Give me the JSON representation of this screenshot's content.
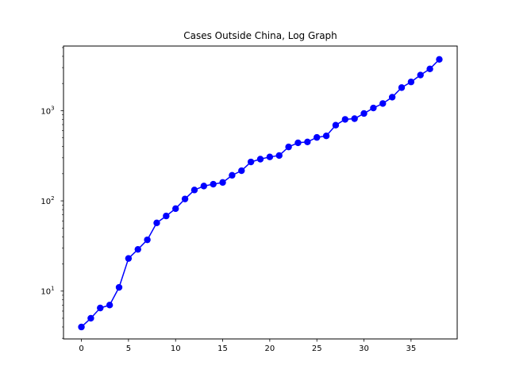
{
  "chart_data": {
    "type": "line",
    "title": "Cases Outside China, Log Graph",
    "xlabel": "",
    "ylabel": "",
    "xscale": "linear",
    "yscale": "log",
    "xlim": [
      -1.9,
      39.9
    ],
    "ylim": [
      2.95,
      5200
    ],
    "grid": false,
    "legend": "none",
    "x_ticks": [
      0,
      5,
      10,
      15,
      20,
      25,
      30,
      35
    ],
    "x_tick_labels": [
      "0",
      "5",
      "10",
      "15",
      "20",
      "25",
      "30",
      "35"
    ],
    "y_major_ticks": [
      10,
      100,
      1000
    ],
    "y_tick_label_base": "10",
    "y_tick_label_exponents": [
      "1",
      "2",
      "3"
    ],
    "y_minor_ticks": [
      3,
      4,
      5,
      6,
      7,
      8,
      9,
      20,
      30,
      40,
      50,
      60,
      70,
      80,
      90,
      200,
      300,
      400,
      500,
      600,
      700,
      800,
      900,
      2000,
      3000,
      4000,
      5000
    ],
    "series": [
      {
        "color": "#0000ff",
        "marker": "circle",
        "x": [
          0,
          1,
          2,
          3,
          4,
          5,
          6,
          7,
          8,
          9,
          10,
          11,
          12,
          13,
          14,
          15,
          16,
          17,
          18,
          19,
          20,
          21,
          22,
          23,
          24,
          25,
          26,
          27,
          28,
          29,
          30,
          31,
          32,
          33,
          34,
          35,
          36,
          37,
          38
        ],
        "values": [
          4,
          5,
          6.5,
          7,
          11,
          23,
          29,
          37,
          57,
          68,
          82,
          105,
          132,
          146,
          153,
          160,
          192,
          216,
          270,
          290,
          307,
          318,
          396,
          440,
          450,
          505,
          525,
          690,
          800,
          815,
          930,
          1070,
          1200,
          1410,
          1800,
          2080,
          2480,
          2900,
          3700
        ]
      }
    ]
  }
}
